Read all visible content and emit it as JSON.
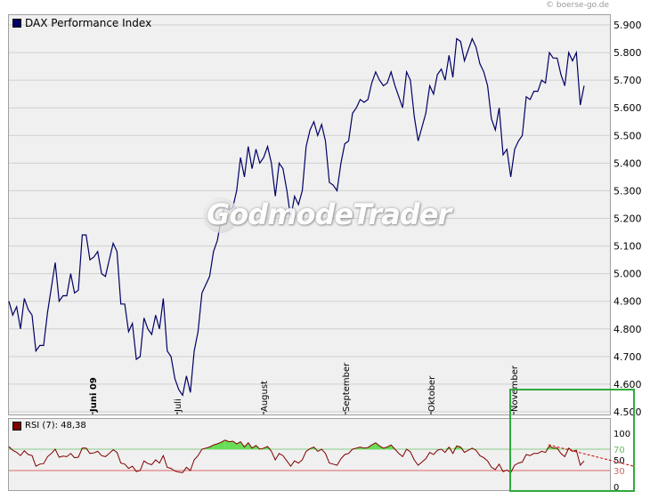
{
  "copyright": "© boerse-go.de",
  "watermark": "GodmodeTrader",
  "main_legend": "DAX Performance Index",
  "rsi_legend": "RSI (7): 48,38",
  "colors": {
    "price_line": "#000066",
    "rsi_line": "#800000",
    "overbought_fill": "#66dd55",
    "line_70": "#88cc88",
    "line_30": "#dd6666",
    "highlight": "#2eaa3f",
    "trend_dashed": "#cc0000"
  },
  "chart_data": [
    {
      "type": "line",
      "title": "DAX Performance Index",
      "ylim": [
        4500,
        5950
      ],
      "y_ticks": [
        "5.900",
        "5.800",
        "5.700",
        "5.600",
        "5.500",
        "5.400",
        "5.300",
        "5.200",
        "5.100",
        "5.000",
        "4.900",
        "4.800",
        "4.700",
        "4.600",
        "4.500"
      ],
      "x_ticks": [
        "Juni 09",
        "Juli",
        "August",
        "September",
        "Oktober",
        "November"
      ],
      "grid": true,
      "series": [
        {
          "values": [
            4900,
            4850,
            4880,
            4800,
            4910,
            4870,
            4850,
            4720,
            4740,
            4740,
            4860,
            4950,
            5040,
            4900,
            4920,
            4920,
            5000,
            4930,
            4940,
            5140,
            5140,
            5050,
            5060,
            5080,
            5000,
            4990,
            5050,
            5110,
            5080,
            4890,
            4890,
            4790,
            4820,
            4690,
            4700,
            4840,
            4800,
            4780,
            4850,
            4800,
            4910,
            4720,
            4700,
            4620,
            4580,
            4560,
            4630,
            4570,
            4720,
            4790,
            4930,
            4960,
            4990,
            5080,
            5120,
            5200,
            5250,
            5230,
            5240,
            5300,
            5420,
            5350,
            5460,
            5380,
            5450,
            5400,
            5420,
            5460,
            5400,
            5280,
            5400,
            5380,
            5300,
            5200,
            5280,
            5250,
            5300,
            5460,
            5520,
            5550,
            5500,
            5540,
            5480,
            5330,
            5320,
            5300,
            5400,
            5470,
            5480,
            5580,
            5600,
            5630,
            5620,
            5630,
            5690,
            5730,
            5700,
            5680,
            5690,
            5730,
            5680,
            5640,
            5600,
            5730,
            5700,
            5570,
            5480,
            5530,
            5580,
            5680,
            5650,
            5720,
            5740,
            5700,
            5790,
            5710,
            5850,
            5840,
            5770,
            5810,
            5850,
            5820,
            5760,
            5730,
            5680,
            5560,
            5520,
            5600,
            5430,
            5450,
            5350,
            5450,
            5480,
            5500,
            5640,
            5630,
            5660,
            5660,
            5700,
            5690,
            5800,
            5780,
            5780,
            5720,
            5680,
            5800,
            5770,
            5800,
            5610,
            5680
          ]
        }
      ]
    },
    {
      "type": "line",
      "title": "RSI (7): 48,38",
      "ylim": [
        -10,
        110
      ],
      "y_ticks": [
        "100",
        "70",
        "50",
        "30",
        "0"
      ],
      "levels": [
        70,
        30
      ],
      "series": [
        {
          "values": [
            75,
            68,
            64,
            58,
            67,
            60,
            58,
            38,
            42,
            43,
            56,
            62,
            70,
            55,
            57,
            56,
            62,
            54,
            55,
            72,
            72,
            62,
            63,
            66,
            58,
            56,
            62,
            69,
            64,
            44,
            42,
            34,
            38,
            28,
            30,
            48,
            43,
            41,
            50,
            44,
            58,
            36,
            34,
            29,
            27,
            26,
            36,
            30,
            50,
            58,
            70,
            72,
            74,
            78,
            80,
            83,
            87,
            84,
            85,
            80,
            84,
            74,
            82,
            72,
            77,
            70,
            72,
            75,
            66,
            50,
            62,
            58,
            48,
            38,
            48,
            44,
            50,
            66,
            71,
            74,
            66,
            70,
            62,
            44,
            42,
            40,
            52,
            60,
            62,
            70,
            72,
            74,
            72,
            73,
            78,
            82,
            76,
            72,
            74,
            78,
            70,
            62,
            56,
            70,
            65,
            50,
            40,
            46,
            52,
            64,
            60,
            68,
            70,
            64,
            74,
            62,
            76,
            74,
            64,
            68,
            72,
            68,
            58,
            54,
            48,
            36,
            32,
            42,
            28,
            31,
            26,
            40,
            44,
            46,
            60,
            58,
            62,
            62,
            66,
            64,
            76,
            72,
            72,
            62,
            56,
            72,
            66,
            68,
            40,
            48
          ]
        }
      ]
    }
  ]
}
